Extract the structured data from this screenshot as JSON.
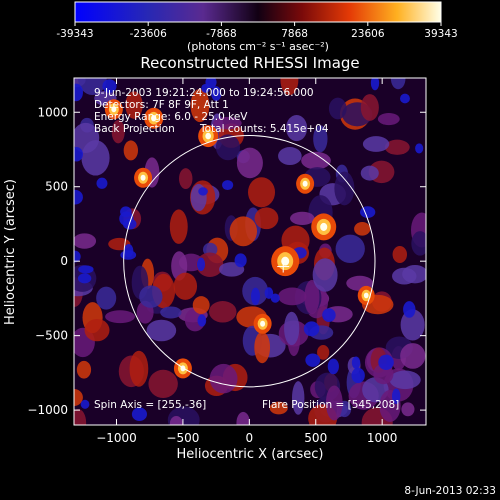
{
  "chart_data": {
    "type": "heatmap",
    "title": "Reconstructed RHESSI Image",
    "xlabel": "Heliocentric X (arcsec)",
    "ylabel": "Heliocentric Y (arcsec)",
    "xlim": [
      -1320,
      1330
    ],
    "ylim": [
      -1100,
      1230
    ],
    "x_ticks": [
      -1000,
      -500,
      0,
      500,
      1000
    ],
    "y_ticks": [
      -1000,
      -500,
      0,
      500,
      1000
    ],
    "colorbar": {
      "ticks": [
        -39343,
        -23606,
        -7868,
        7868,
        23606,
        39343
      ],
      "unit_label": "(photons cm⁻² s⁻¹ asec⁻²)",
      "range": [
        -39343,
        39343
      ]
    },
    "annotations": {
      "line1": "9-Jun-2003 19:21:24.000 to 19:24:56.000",
      "line2": "Detectors: 7F 8F 9F, Att 1",
      "line3": "Energy Range: 6.0 - 25.0 keV",
      "line4a": "Back Projection",
      "line4b": "Total counts: 5.415e+04",
      "spin_axis": "Spin Axis = [255,-36]",
      "flare_position": "Flare Position = [545,208]"
    },
    "solar_limb_radius": 946,
    "source_marker": [
      255,
      -36
    ],
    "hot_spots": [
      [
        270,
        0,
        1.0
      ],
      [
        560,
        230,
        0.85
      ],
      [
        -310,
        840,
        0.6
      ],
      [
        -720,
        960,
        0.55
      ],
      [
        -1020,
        1020,
        0.5
      ],
      [
        420,
        520,
        0.5
      ],
      [
        -800,
        560,
        0.5
      ],
      [
        100,
        -420,
        0.5
      ],
      [
        -500,
        -720,
        0.5
      ],
      [
        880,
        -230,
        0.45
      ]
    ],
    "timestamp": "8-Jun-2013 02:33"
  }
}
